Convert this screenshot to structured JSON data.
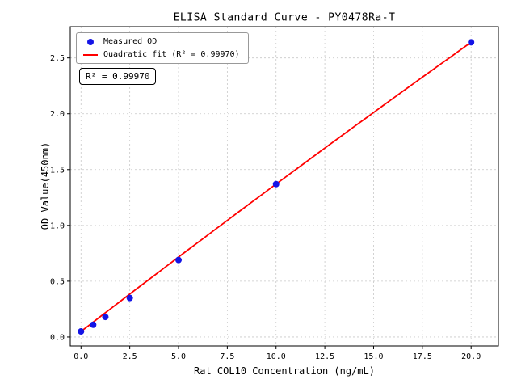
{
  "chart_data": {
    "type": "scatter",
    "title": "ELISA Standard Curve - PY0478Ra-T",
    "xlabel": "Rat COL10 Concentration (ng/mL)",
    "ylabel": "OD Value(450nm)",
    "xlim": [
      -0.55,
      21.4
    ],
    "ylim": [
      -0.08,
      2.78
    ],
    "xticks": [
      "0.0",
      "2.5",
      "5.0",
      "7.5",
      "10.0",
      "12.5",
      "15.0",
      "17.5",
      "20.0"
    ],
    "yticks": [
      "0.0",
      "0.5",
      "1.0",
      "1.5",
      "2.0",
      "2.5"
    ],
    "grid": true,
    "points": {
      "name": "Measured OD",
      "x": [
        0,
        0.625,
        1.25,
        2.5,
        5,
        10,
        20
      ],
      "y": [
        0.05,
        0.11,
        0.18,
        0.35,
        0.69,
        1.37,
        2.64
      ],
      "color": "#1414e6"
    },
    "fit": {
      "name": "Quadratic fit",
      "coeffs": [
        -0.00025,
        0.1345,
        0.05
      ],
      "x_range": [
        0,
        20
      ],
      "color": "#ff0000",
      "r_squared": "0.99970"
    },
    "annotation": "R² = 0.99970",
    "legend": {
      "position": "top-left",
      "entries": [
        {
          "label": "Measured OD",
          "marker": "dot"
        },
        {
          "label": "Quadratic fit (R² = 0.99970)",
          "marker": "line"
        }
      ]
    }
  }
}
